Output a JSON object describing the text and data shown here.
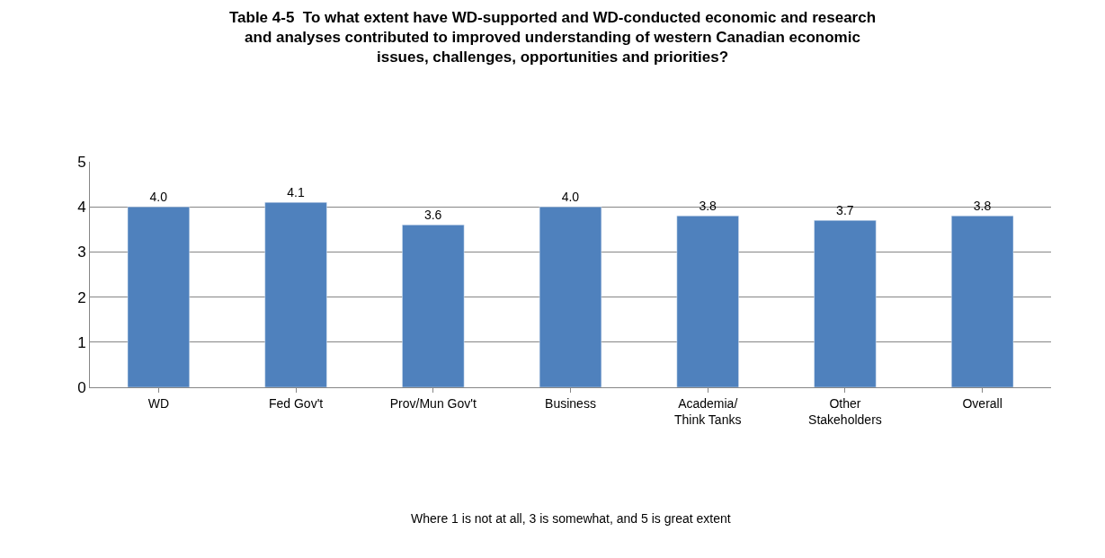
{
  "chart_data": {
    "type": "bar",
    "title": "Table 4-5  To what extent have WD-supported and WD-conducted economic and research and analyses contributed to improved understanding of western Canadian economic issues, challenges, opportunities and priorities?",
    "categories": [
      "WD",
      "Fed Gov't",
      "Prov/Mun Gov't",
      "Business",
      "Academia/ Think Tanks",
      "Other Stakeholders",
      "Overall"
    ],
    "values": [
      4.0,
      4.1,
      3.6,
      4.0,
      3.8,
      3.7,
      3.8
    ],
    "value_labels": [
      "4.0",
      "4.1",
      "3.6",
      "4.0",
      "3.8",
      "3.7",
      "3.8"
    ],
    "color": "#4f81bd",
    "ylim": [
      0,
      5
    ],
    "yticks": [
      0,
      1,
      2,
      3,
      4,
      5
    ],
    "grid": "y",
    "annotations": [
      "Where 1 is not at all, 3 is somewhat, and 5 is great extent"
    ]
  }
}
